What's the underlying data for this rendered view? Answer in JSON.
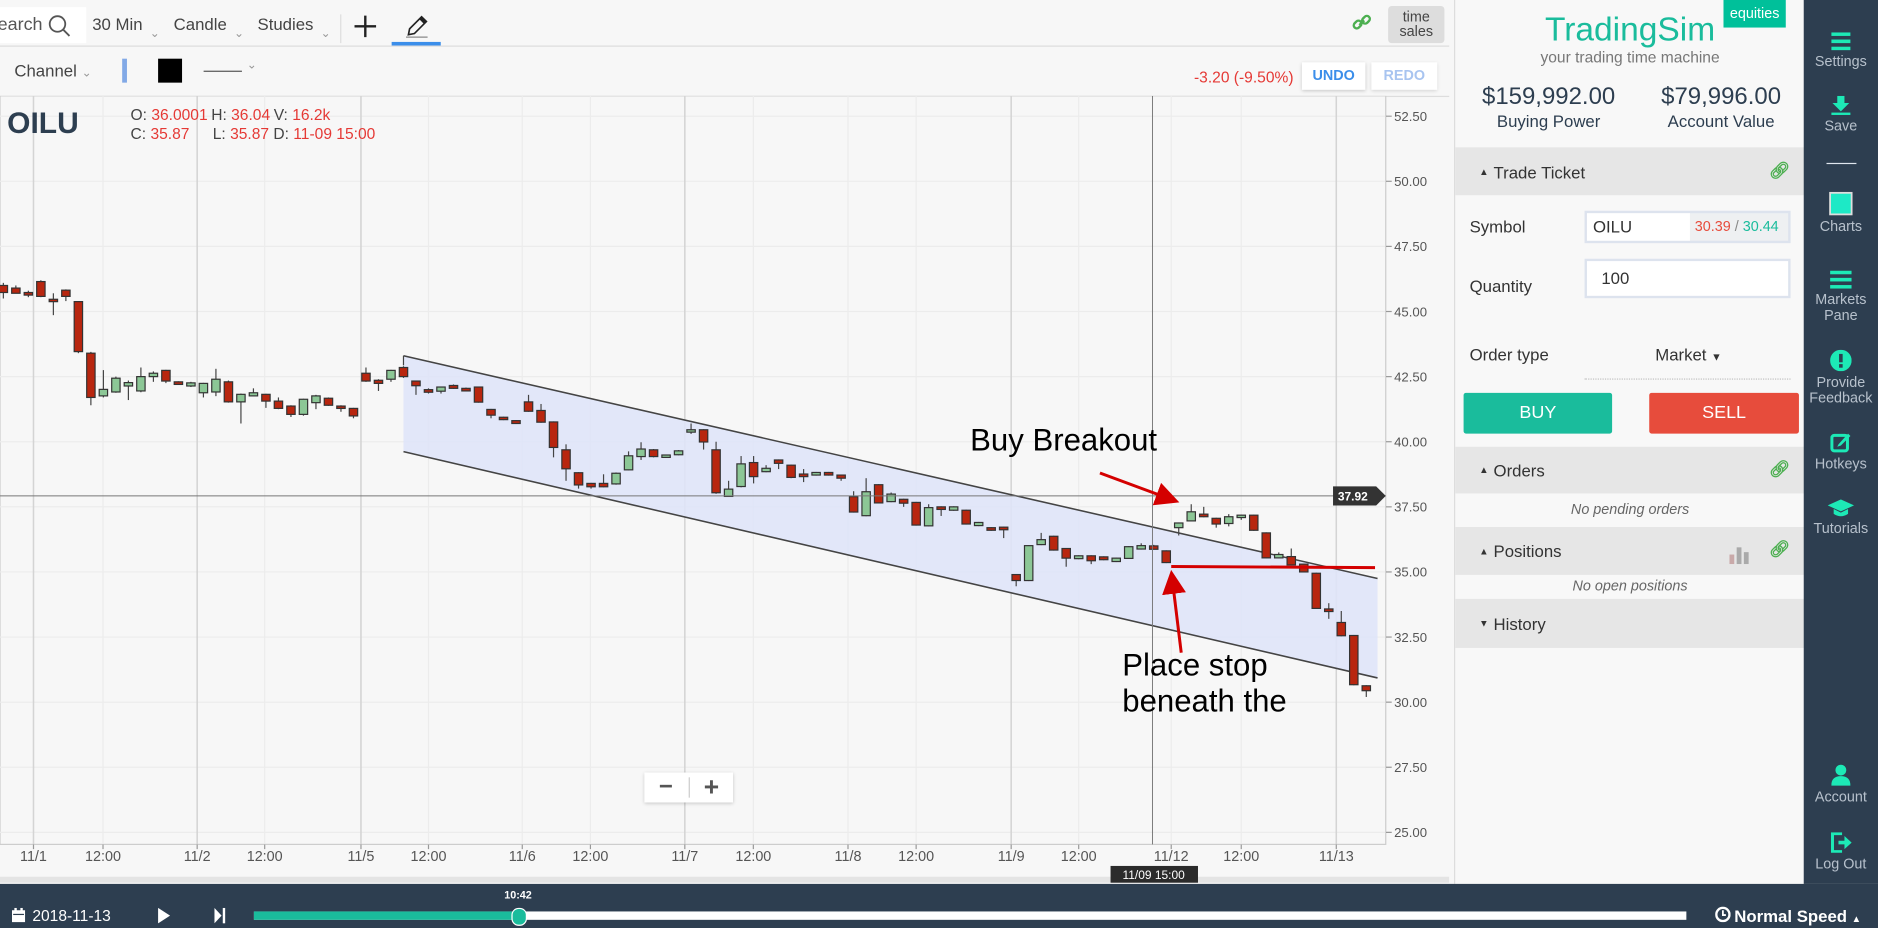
{
  "toolbar": {
    "search_placeholder": "Search",
    "interval": "30 Min",
    "chart_type": "Candle",
    "studies": "Studies",
    "time_sales": [
      "time",
      "sales"
    ]
  },
  "drawing_bar": {
    "tool": "Channel",
    "undo": "UNDO",
    "redo": "REDO",
    "change": "-3.20 (-9.50%)"
  },
  "legend": {
    "symbol": "OILU",
    "o_label": "O:",
    "o": "36.0001",
    "h_label": "H:",
    "h": "36.04",
    "v_label": "V:",
    "v": "16.2k",
    "c_label": "C:",
    "c": "35.87",
    "l_label": "L:",
    "l": "35.87",
    "d_label": "D:",
    "d": "11-09 15:00"
  },
  "chart_data": {
    "type": "candlestick",
    "y_ticks": [
      "52.50",
      "50.00",
      "47.50",
      "45.00",
      "42.50",
      "40.00",
      "37.50",
      "35.00",
      "32.50",
      "30.00",
      "27.50",
      "25.00"
    ],
    "ylim": [
      25,
      52.5
    ],
    "x_ticks": [
      "11/1",
      "12:00",
      "11/2",
      "12:00",
      "11/5",
      "12:00",
      "11/6",
      "12:00",
      "11/7",
      "12:00",
      "11/8",
      "12:00",
      "11/9",
      "12:00",
      "11/12",
      "12:00",
      "11/13"
    ],
    "crosshair": {
      "price": "37.92",
      "time": "11/09 15:00"
    },
    "colors": {
      "up": "#8cc796",
      "down": "#b8260f",
      "channel_fill": "#dfe4f8",
      "annotation": "#d40000"
    },
    "candles_ohlc": [
      [
        46.0,
        46.1,
        45.5,
        45.73
      ],
      [
        45.9,
        46.0,
        45.7,
        45.7
      ],
      [
        45.73,
        45.8,
        45.55,
        45.63
      ],
      [
        46.15,
        46.2,
        45.55,
        45.58
      ],
      [
        45.47,
        45.7,
        44.86,
        45.38
      ],
      [
        45.82,
        45.85,
        45.4,
        45.58
      ],
      [
        45.38,
        45.4,
        43.4,
        43.46
      ],
      [
        43.4,
        43.45,
        41.4,
        41.7
      ],
      [
        41.76,
        42.75,
        41.7,
        42.01
      ],
      [
        41.91,
        42.5,
        41.88,
        42.44
      ],
      [
        42.14,
        42.35,
        41.6,
        42.27
      ],
      [
        41.95,
        42.85,
        41.9,
        42.5
      ],
      [
        42.5,
        42.7,
        42.3,
        42.63
      ],
      [
        42.74,
        42.76,
        42.25,
        42.33
      ],
      [
        42.3,
        42.32,
        42.18,
        42.2
      ],
      [
        42.14,
        42.3,
        42.1,
        42.26
      ],
      [
        41.88,
        42.26,
        41.7,
        42.24
      ],
      [
        41.91,
        42.8,
        41.75,
        42.4
      ],
      [
        42.3,
        42.35,
        41.5,
        41.53
      ],
      [
        41.53,
        41.85,
        40.7,
        41.82
      ],
      [
        41.76,
        42.05,
        41.74,
        41.88
      ],
      [
        41.82,
        41.84,
        41.3,
        41.56
      ],
      [
        41.56,
        41.7,
        41.25,
        41.28
      ],
      [
        41.37,
        41.4,
        40.95,
        41.05
      ],
      [
        41.05,
        41.65,
        41.0,
        41.63
      ],
      [
        41.5,
        41.8,
        41.25,
        41.76
      ],
      [
        41.67,
        41.7,
        41.38,
        41.4
      ],
      [
        41.37,
        41.4,
        41.15,
        41.28
      ],
      [
        41.28,
        41.3,
        40.9,
        40.99
      ],
      [
        42.63,
        42.85,
        42.3,
        42.33
      ],
      [
        42.36,
        42.4,
        41.95,
        42.24
      ],
      [
        42.4,
        42.76,
        42.3,
        42.74
      ],
      [
        42.85,
        42.9,
        42.45,
        42.5
      ],
      [
        42.33,
        42.35,
        41.8,
        42.15
      ],
      [
        42.0,
        42.05,
        41.85,
        41.9
      ],
      [
        41.94,
        42.12,
        41.85,
        42.1
      ],
      [
        42.16,
        42.2,
        42.03,
        42.05
      ],
      [
        42.05,
        42.08,
        41.93,
        41.95
      ],
      [
        42.1,
        42.12,
        41.5,
        41.52
      ],
      [
        41.24,
        41.26,
        40.9,
        41.02
      ],
      [
        40.94,
        40.96,
        40.83,
        40.85
      ],
      [
        40.81,
        40.83,
        40.68,
        40.7
      ],
      [
        41.53,
        41.8,
        41.15,
        41.17
      ],
      [
        41.2,
        41.45,
        40.73,
        40.75
      ],
      [
        40.76,
        40.78,
        39.4,
        39.78
      ],
      [
        39.69,
        39.9,
        38.5,
        38.96
      ],
      [
        38.81,
        38.83,
        38.2,
        38.34
      ],
      [
        38.4,
        38.42,
        38.2,
        38.27
      ],
      [
        38.4,
        38.75,
        38.25,
        38.27
      ],
      [
        38.38,
        38.82,
        38.35,
        38.79
      ],
      [
        38.92,
        39.63,
        38.9,
        39.46
      ],
      [
        39.43,
        39.98,
        39.3,
        39.72
      ],
      [
        39.69,
        39.72,
        39.4,
        39.43
      ],
      [
        39.4,
        39.51,
        39.38,
        39.49
      ],
      [
        39.5,
        39.68,
        39.48,
        39.65
      ],
      [
        40.44,
        40.7,
        40.3,
        40.46
      ],
      [
        40.46,
        40.48,
        39.7,
        39.99
      ],
      [
        39.69,
        40.0,
        38.0,
        38.04
      ],
      [
        37.9,
        38.5,
        37.88,
        38.18
      ],
      [
        38.28,
        39.45,
        38.25,
        39.15
      ],
      [
        39.2,
        39.45,
        38.4,
        38.66
      ],
      [
        38.85,
        39.1,
        38.83,
        38.98
      ],
      [
        39.3,
        39.32,
        38.95,
        39.17
      ],
      [
        39.1,
        39.12,
        38.6,
        38.63
      ],
      [
        38.76,
        38.95,
        38.45,
        38.66
      ],
      [
        38.72,
        38.84,
        38.7,
        38.82
      ],
      [
        38.82,
        38.84,
        38.7,
        38.72
      ],
      [
        38.72,
        38.74,
        38.5,
        38.6
      ],
      [
        37.89,
        38.1,
        37.28,
        37.3
      ],
      [
        37.16,
        38.6,
        37.14,
        38.08
      ],
      [
        38.35,
        38.37,
        37.63,
        37.65
      ],
      [
        37.7,
        38.05,
        37.68,
        37.99
      ],
      [
        37.79,
        37.81,
        37.5,
        37.64
      ],
      [
        37.67,
        37.69,
        36.78,
        36.8
      ],
      [
        36.77,
        37.6,
        36.75,
        37.47
      ],
      [
        37.5,
        37.52,
        37.15,
        37.4
      ],
      [
        37.37,
        37.52,
        37.35,
        37.5
      ],
      [
        37.37,
        37.39,
        36.82,
        36.84
      ],
      [
        36.78,
        36.92,
        36.76,
        36.9
      ],
      [
        36.7,
        36.72,
        36.58,
        36.6
      ],
      [
        36.72,
        36.74,
        36.3,
        36.62
      ],
      [
        34.9,
        34.92,
        34.45,
        34.67
      ],
      [
        34.67,
        36.03,
        34.65,
        36.01
      ],
      [
        36.05,
        36.5,
        36.03,
        36.24
      ],
      [
        36.37,
        36.39,
        35.82,
        35.84
      ],
      [
        35.9,
        35.92,
        35.2,
        35.53
      ],
      [
        35.51,
        35.64,
        35.49,
        35.62
      ],
      [
        35.62,
        35.64,
        35.3,
        35.43
      ],
      [
        35.58,
        35.6,
        35.45,
        35.47
      ],
      [
        35.4,
        35.55,
        35.38,
        35.53
      ],
      [
        35.52,
        35.99,
        35.5,
        35.97
      ],
      [
        35.88,
        36.1,
        35.86,
        36.01
      ],
      [
        36.0001,
        36.04,
        35.87,
        35.87
      ],
      [
        35.81,
        35.83,
        35.34,
        35.36
      ],
      [
        36.7,
        36.9,
        36.4,
        36.88
      ],
      [
        36.96,
        37.6,
        36.94,
        37.31
      ],
      [
        37.22,
        37.5,
        37.1,
        37.12
      ],
      [
        37.06,
        37.08,
        36.7,
        36.84
      ],
      [
        36.86,
        37.22,
        36.75,
        37.12
      ],
      [
        37.1,
        37.2,
        37.0,
        37.18
      ],
      [
        37.18,
        37.2,
        36.58,
        36.6
      ],
      [
        36.5,
        36.52,
        35.52,
        35.54
      ],
      [
        35.54,
        35.75,
        35.52,
        35.67
      ],
      [
        35.59,
        35.9,
        35.25,
        35.27
      ],
      [
        35.3,
        35.32,
        34.98,
        35.0
      ],
      [
        34.95,
        34.97,
        33.58,
        33.6
      ],
      [
        33.58,
        33.8,
        33.2,
        33.48
      ],
      [
        33.06,
        33.5,
        32.53,
        32.55
      ],
      [
        32.56,
        32.58,
        30.65,
        30.67
      ],
      [
        30.63,
        30.65,
        30.2,
        30.44
      ]
    ],
    "channel": {
      "upper": [
        43.3,
        34.75
      ],
      "lower": [
        39.62,
        30.93
      ]
    },
    "stop_line_price": 35.21,
    "annotations": {
      "buy": "Buy Breakout",
      "stop_line1": "Place stop",
      "stop_line2": "beneath the"
    }
  },
  "zoom_controls": {
    "minus": "−",
    "plus": "+"
  },
  "brand": {
    "name": "TradingSim",
    "tagline": "your trading time machine",
    "badge": "equities",
    "color": "#1abc9c"
  },
  "account": {
    "buying_power": "$159,992.00",
    "buying_power_label": "Buying Power",
    "account_value": "$79,996.00",
    "account_value_label": "Account Value"
  },
  "trade_ticket": {
    "title": "Trade Ticket",
    "symbol_label": "Symbol",
    "symbol": "OILU",
    "bid": "30.39",
    "ask": "30.44",
    "sep": " / ",
    "quantity_label": "Quantity",
    "quantity": "100",
    "order_type_label": "Order type",
    "order_type": "Market",
    "buy": "BUY",
    "sell": "SELL"
  },
  "orders": {
    "title": "Orders",
    "empty": "No pending orders"
  },
  "positions": {
    "title": "Positions",
    "empty": "No open positions"
  },
  "history": {
    "title": "History"
  },
  "sidebar": {
    "settings": "Settings",
    "save": "Save",
    "charts": "Charts",
    "markets1": "Markets",
    "markets2": "Pane",
    "feedback1": "Provide",
    "feedback2": "Feedback",
    "hotkeys": "Hotkeys",
    "tutorials": "Tutorials",
    "account": "Account",
    "logout": "Log Out"
  },
  "playback": {
    "date": "2018-11-13",
    "time": "10:42",
    "progress": 0.185,
    "speed": "Normal Speed"
  }
}
